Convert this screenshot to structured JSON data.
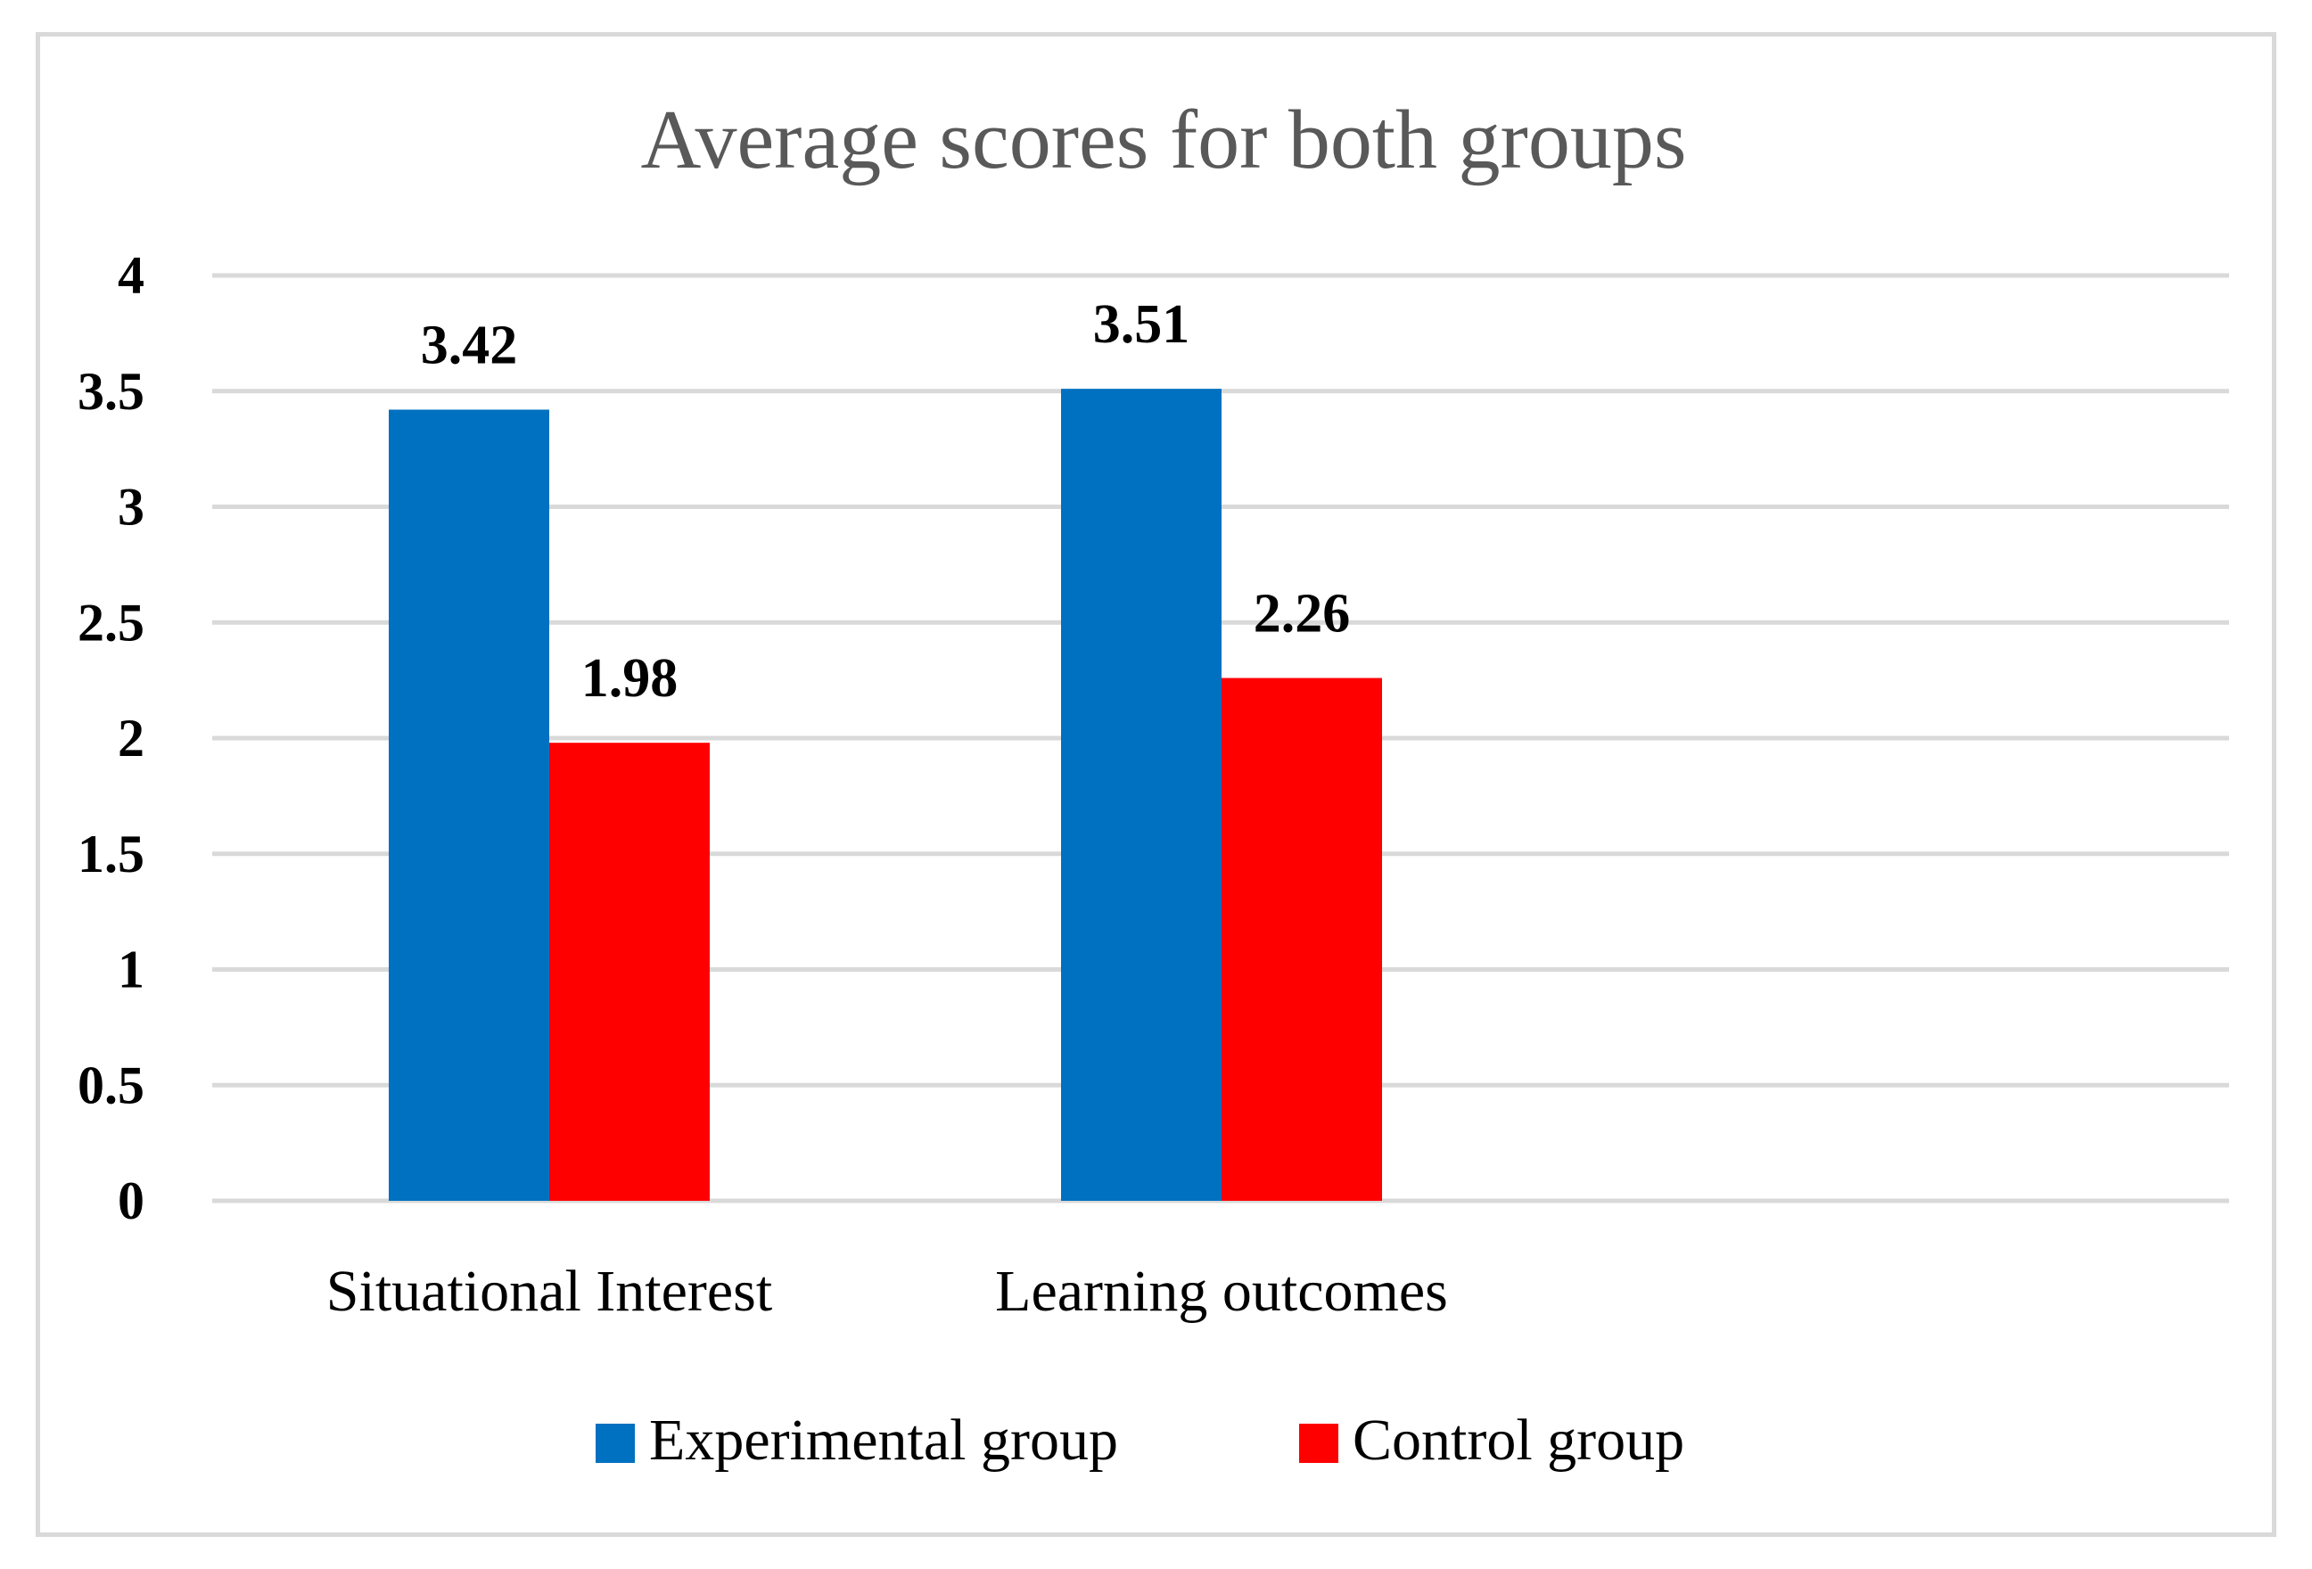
{
  "chart_data": {
    "type": "bar",
    "title": "Average scores for both groups",
    "categories": [
      "Situational Interest",
      "Learning outcomes"
    ],
    "series": [
      {
        "name": "Experimental group",
        "values": [
          3.42,
          3.51
        ],
        "labels": [
          "3.42",
          "3.51"
        ],
        "color": "#0070C0"
      },
      {
        "name": "Control group",
        "values": [
          1.98,
          2.26
        ],
        "labels": [
          "1.98",
          "2.26"
        ],
        "color": "#FF0000"
      }
    ],
    "xlabel": "",
    "ylabel": "",
    "ylim": [
      0,
      4
    ],
    "yticks": [
      "0",
      "0.5",
      "1",
      "1.5",
      "2",
      "2.5",
      "3",
      "3.5",
      "4"
    ],
    "grid": true,
    "legend_position": "bottom",
    "colors": {
      "gridline": "#D9D9D9",
      "title": "#595959",
      "border": "#D9D9D9"
    }
  }
}
